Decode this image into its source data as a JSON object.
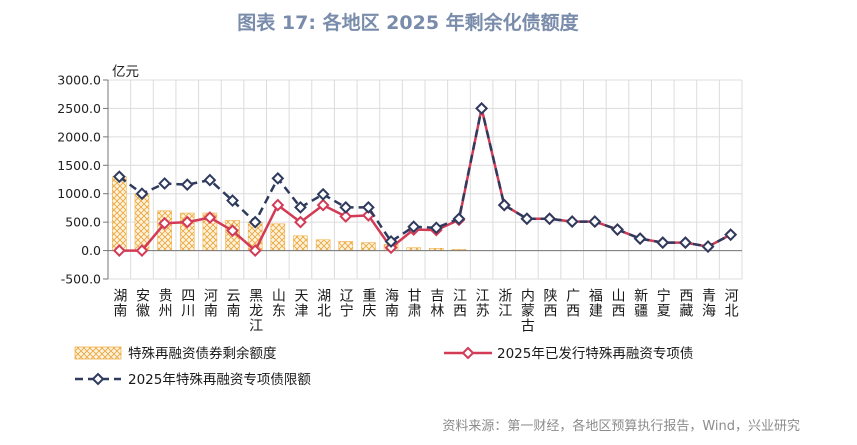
{
  "source": "资料来源：第一财经，各地区预算执行报告，Wind，兴业研究",
  "colors": {
    "title": "#7a8cab",
    "bar": "#eeb04a",
    "bar_fill": "#fdf3dc",
    "issued": "#d23a56",
    "limit": "#2f3b5e",
    "grid": "#dcdcdc",
    "axis": "#777777"
  },
  "chart_data": {
    "type": "bar",
    "title": "图表 17: 各地区 2025 年剩余化债额度",
    "ylabel": "亿元",
    "xlabel": "",
    "ylim": [
      -500,
      3000
    ],
    "yticks": [
      "3000.0",
      "2500.0",
      "2000.0",
      "1500.0",
      "1000.0",
      "500.0",
      "0.0",
      "-500.0"
    ],
    "grid": true,
    "legend": "bottom",
    "categories": [
      "湖南",
      "安徽",
      "贵州",
      "四川",
      "河南",
      "云南",
      "黑龙江",
      "山东",
      "天津",
      "湖北",
      "辽宁",
      "重庆",
      "海南",
      "甘肃",
      "吉林",
      "江西",
      "江苏",
      "浙江",
      "内蒙古",
      "陕西",
      "广西",
      "福建",
      "山西",
      "新疆",
      "宁夏",
      "西藏",
      "青海",
      "河北"
    ],
    "series": [
      {
        "name": "特殊再融资债券剩余额度",
        "type": "bar",
        "values": [
          1300,
          1000,
          700,
          660,
          660,
          530,
          500,
          470,
          260,
          190,
          160,
          140,
          110,
          50,
          40,
          20,
          0,
          0,
          0,
          0,
          0,
          0,
          0,
          0,
          0,
          0,
          0,
          0
        ]
      },
      {
        "name": "2025年已发行特殊再融资专项债",
        "type": "line",
        "values": [
          0,
          0,
          480,
          500,
          580,
          350,
          0,
          800,
          500,
          800,
          600,
          620,
          50,
          370,
          360,
          540,
          2500,
          800,
          560,
          560,
          510,
          510,
          370,
          210,
          140,
          140,
          70,
          280
        ]
      },
      {
        "name": "2025年特殊再融资专项债限额",
        "type": "line",
        "style": "dashed",
        "values": [
          1300,
          1000,
          1180,
          1160,
          1240,
          880,
          500,
          1270,
          760,
          990,
          760,
          760,
          160,
          420,
          400,
          560,
          2500,
          800,
          560,
          560,
          510,
          510,
          370,
          210,
          140,
          140,
          70,
          280
        ]
      }
    ]
  }
}
